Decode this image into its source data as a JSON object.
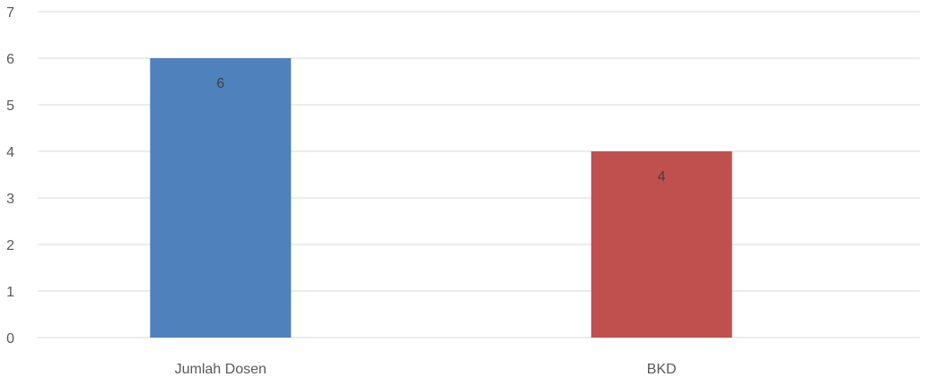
{
  "chart_data": {
    "type": "bar",
    "categories": [
      "Jumlah Dosen",
      "BKD"
    ],
    "values": [
      6,
      4
    ],
    "colors": [
      "#4f81bd",
      "#c0504d"
    ],
    "data_labels": [
      "6",
      "4"
    ],
    "yticks": [
      "0",
      "1",
      "2",
      "3",
      "4",
      "5",
      "6",
      "7"
    ],
    "ylim": [
      0,
      7
    ],
    "grid": true,
    "legend": "none"
  }
}
